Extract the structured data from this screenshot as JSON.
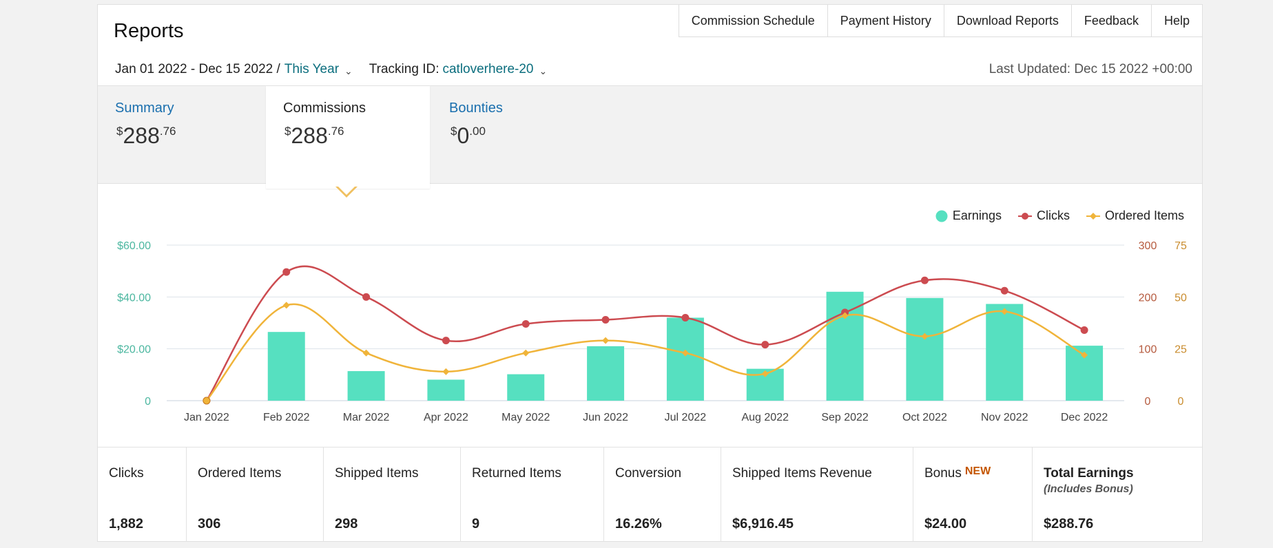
{
  "header": {
    "title": "Reports",
    "nav": [
      "Commission Schedule",
      "Payment History",
      "Download Reports",
      "Feedback",
      "Help"
    ],
    "date_range": "Jan 01 2022 - Dec 15 2022 /",
    "period": "This Year",
    "tracking_label": "Tracking ID:",
    "tracking_id": "catloverhere-20",
    "last_updated": "Last Updated: Dec 15 2022 +00:00"
  },
  "tabs": [
    {
      "label": "Summary",
      "currency": "$",
      "whole": "288",
      "cents": ".76"
    },
    {
      "label": "Commissions",
      "currency": "$",
      "whole": "288",
      "cents": ".76"
    },
    {
      "label": "Bounties",
      "currency": "$",
      "whole": "0",
      "cents": ".00"
    }
  ],
  "colors": {
    "earnings": "#56e0c0",
    "clicks": "#cc4b50",
    "ordered": "#f0b43a",
    "earnings_axis": "#4cb7a0",
    "clicks_axis": "#b55a3e",
    "ordered_axis": "#c98c2e"
  },
  "chart_data": {
    "type": "bar",
    "categories": [
      "Jan 2022",
      "Feb 2022",
      "Mar 2022",
      "Apr 2022",
      "May 2022",
      "Jun 2022",
      "Jul 2022",
      "Aug 2022",
      "Sep 2022",
      "Oct 2022",
      "Nov 2022",
      "Dec 2022"
    ],
    "legend": [
      "Earnings",
      "Clicks",
      "Ordered Items"
    ],
    "legend_position": "top-right",
    "grid": true,
    "series": [
      {
        "name": "Earnings",
        "type": "bar",
        "axis": "left",
        "values": [
          0,
          26.5,
          11.4,
          8.1,
          10.2,
          21.0,
          32.0,
          12.3,
          42.0,
          39.6,
          37.3,
          21.2
        ]
      },
      {
        "name": "Clicks",
        "type": "line",
        "axis": "right1",
        "values": [
          0,
          248,
          200,
          116,
          148,
          156,
          160,
          108,
          170,
          232,
          212,
          136
        ]
      },
      {
        "name": "Ordered Items",
        "type": "line",
        "axis": "right2",
        "values": [
          0,
          46,
          23,
          14,
          23,
          29,
          23,
          13,
          41,
          31,
          43,
          22
        ]
      }
    ],
    "axes": {
      "left": {
        "ylim": [
          0,
          60
        ],
        "ticks": [
          "0",
          "$20.00",
          "$40.00",
          "$60.00"
        ]
      },
      "right1": {
        "ylim": [
          0,
          300
        ],
        "ticks": [
          "0",
          "100",
          "200",
          "300"
        ]
      },
      "right2": {
        "ylim": [
          0,
          75
        ],
        "ticks": [
          "0",
          "25",
          "50",
          "75"
        ]
      }
    }
  },
  "stats": [
    {
      "label": "Clicks",
      "value": "1,882"
    },
    {
      "label": "Ordered Items",
      "value": "306"
    },
    {
      "label": "Shipped Items",
      "value": "298"
    },
    {
      "label": "Returned Items",
      "value": "9"
    },
    {
      "label": "Conversion",
      "value": "16.26%"
    },
    {
      "label": "Shipped Items Revenue",
      "value": "$6,916.45"
    },
    {
      "label": "Bonus",
      "badge": "NEW",
      "value": "$24.00"
    },
    {
      "label": "Total Earnings",
      "sub": "(Includes Bonus)",
      "value": "$288.76"
    }
  ]
}
